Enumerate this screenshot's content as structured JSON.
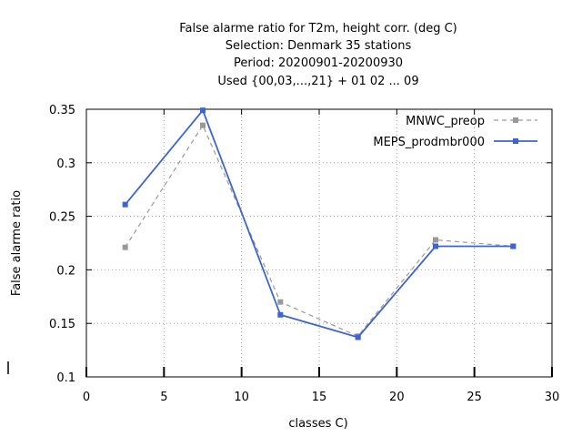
{
  "chart_data": {
    "type": "line",
    "title_lines": [
      "False alarme ratio  for T2m, height corr. (deg C)",
      "Selection: Denmark     35 stations",
      "Period: 20200901-20200930",
      "Used {00,03,...,21} + 01 02 ... 09"
    ],
    "xlabel": "classes C)",
    "ylabel": "False alarme ratio",
    "xlim": [
      0,
      30
    ],
    "ylim": [
      0.1,
      0.35
    ],
    "xticks": [
      0,
      5,
      10,
      15,
      20,
      25,
      30
    ],
    "xtick_labels": [
      "0",
      "5",
      "10",
      "15",
      "20",
      "25",
      "30"
    ],
    "yticks": [
      0.1,
      0.15,
      0.2,
      0.25,
      0.3,
      0.35
    ],
    "ytick_labels": [
      "0.1",
      "0.15",
      "0.2",
      "0.25",
      "0.3",
      "0.35"
    ],
    "grid": true,
    "legend_position": "top-right",
    "series": [
      {
        "name": "MNWC_preop",
        "color": "#999999",
        "dashed": true,
        "x": [
          2.5,
          7.5,
          12.5,
          17.5,
          22.5,
          27.5
        ],
        "y": [
          0.221,
          0.335,
          0.17,
          0.138,
          0.228,
          0.222
        ]
      },
      {
        "name": "MEPS_prodmbr000",
        "color": "#3c64d2",
        "dashed": false,
        "x": [
          2.5,
          7.5,
          12.5,
          17.5,
          22.5,
          27.5
        ],
        "y": [
          0.261,
          0.349,
          0.158,
          0.137,
          0.222,
          0.222
        ]
      }
    ]
  }
}
